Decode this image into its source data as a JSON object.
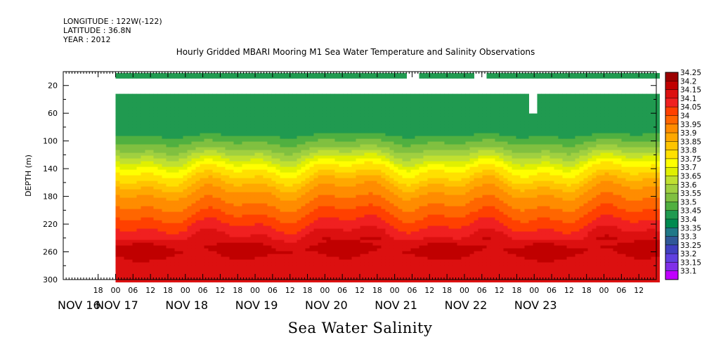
{
  "header": {
    "longitude": "LONGITUDE : 122W(-122)",
    "latitude": "LATITUDE : 36.8N",
    "year": "YEAR : 2012"
  },
  "footer_label": "Sea Water Salinity",
  "chart_data": {
    "type": "heatmap",
    "title": "Hourly Gridded MBARI Mooring M1 Sea Water Temperature and Salinity Observations",
    "xlabel": "",
    "ylabel": "DEPTH (m)",
    "ylim": [
      300,
      0
    ],
    "xlim_hours": [
      -18,
      186
    ],
    "y_ticks": [
      20,
      60,
      100,
      140,
      180,
      220,
      260,
      300
    ],
    "x_hour_ticks": [
      "18",
      "00",
      "06",
      "12",
      "18",
      "00",
      "06",
      "12",
      "18",
      "00",
      "06",
      "12",
      "18",
      "00",
      "06",
      "12",
      "18",
      "00",
      "06",
      "12",
      "18",
      "00",
      "06",
      "12",
      "18",
      "00",
      "06",
      "12",
      "18",
      "00",
      "06",
      "12"
    ],
    "x_date_labels": [
      "NOV 16",
      "NOV 17",
      "NOV 18",
      "NOV 19",
      "NOV 20",
      "NOV 21",
      "NOV 22",
      "NOV 23"
    ],
    "colorbar_levels": [
      "34.25",
      "34.2",
      "34.15",
      "34.1",
      "34.05",
      "34",
      "33.95",
      "33.9",
      "33.85",
      "33.8",
      "33.75",
      "33.7",
      "33.65",
      "33.6",
      "33.55",
      "33.5",
      "33.45",
      "33.4",
      "33.35",
      "33.3",
      "33.25",
      "33.2",
      "33.15",
      "33.1"
    ],
    "colorbar_colors": [
      "#9c0000",
      "#c00000",
      "#dc1010",
      "#f02020",
      "#ff4000",
      "#ff6600",
      "#ff8c00",
      "#ffa800",
      "#ffc400",
      "#ffe000",
      "#ffff00",
      "#e0f000",
      "#c0e030",
      "#a0d040",
      "#80c040",
      "#50b040",
      "#209a50",
      "#008a50",
      "#207888",
      "#305898",
      "#4040c0",
      "#6040e0",
      "#8030e8",
      "#c000ff"
    ],
    "data_start": "NOV 17 00",
    "profile_depths": [
      10,
      35,
      65,
      90,
      110,
      125,
      135,
      150,
      165,
      180,
      195,
      210,
      225,
      240,
      255,
      270,
      290,
      300
    ],
    "mean_profile": [
      33.45,
      null,
      33.45,
      33.5,
      33.6,
      33.7,
      33.78,
      33.85,
      33.93,
      33.98,
      34.02,
      34.07,
      34.12,
      34.17,
      34.22,
      34.18,
      34.16,
      34.15
    ],
    "sensor_gaps": [
      {
        "depth": 20,
        "start": "NOV 21 03",
        "end": "NOV 21 07"
      },
      {
        "depth": 20,
        "start": "NOV 22 03",
        "end": "NOV 22 07"
      },
      {
        "depth": 60,
        "start": "NOV 22 22",
        "end": "NOV 23 00"
      }
    ]
  }
}
